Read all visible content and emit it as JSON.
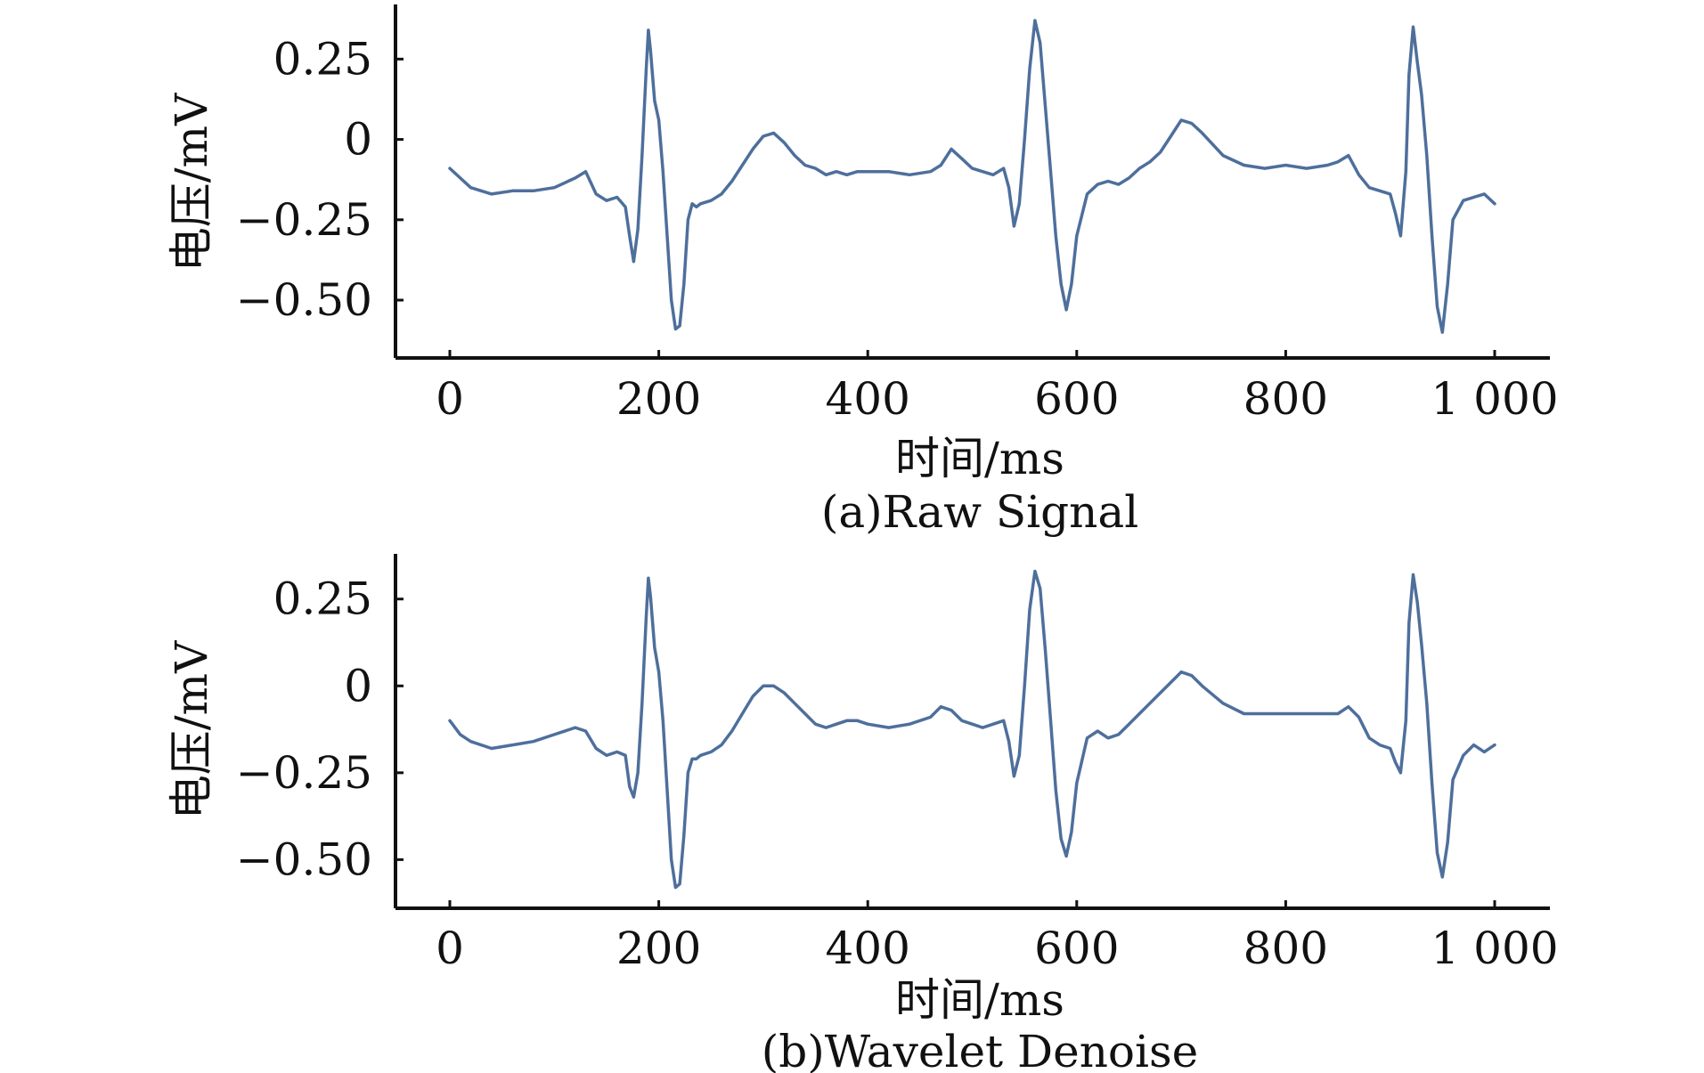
{
  "chart_data": [
    {
      "type": "line",
      "caption": "(a)Raw Signal",
      "xlabel": "时间/ms",
      "ylabel": "电压/mV",
      "xlim": [
        -25,
        1025
      ],
      "ylim": [
        -0.68,
        0.42
      ],
      "xticks": [
        0,
        200,
        400,
        600,
        800,
        1000
      ],
      "xtick_labels": [
        "0",
        "200",
        "400",
        "600",
        "800",
        "1 000"
      ],
      "yticks": [
        0.25,
        0,
        -0.25,
        -0.5
      ],
      "ytick_labels": [
        "0.25",
        "0",
        "−0.25",
        "−0.50"
      ],
      "grid": false,
      "color": "#4e6f9c",
      "series": [
        {
          "x": [
            0,
            10,
            20,
            40,
            60,
            80,
            100,
            120,
            130,
            140,
            150,
            160,
            168,
            172,
            176,
            180,
            184,
            188,
            190,
            192,
            196,
            200,
            204,
            208,
            212,
            216,
            220,
            224,
            228,
            232,
            236,
            240,
            250,
            260,
            270,
            280,
            290,
            300,
            310,
            320,
            330,
            340,
            350,
            360,
            370,
            380,
            390,
            400,
            420,
            440,
            460,
            470,
            480,
            490,
            500,
            510,
            520,
            530,
            535,
            540,
            545,
            550,
            555,
            560,
            565,
            570,
            575,
            580,
            585,
            590,
            595,
            600,
            610,
            620,
            630,
            640,
            650,
            660,
            670,
            680,
            690,
            700,
            710,
            720,
            740,
            760,
            780,
            800,
            820,
            840,
            850,
            860,
            870,
            880,
            890,
            900,
            905,
            910,
            915,
            918,
            922,
            926,
            930,
            935,
            940,
            945,
            950,
            955,
            960,
            970,
            980,
            990,
            1000
          ],
          "y": [
            -0.09,
            -0.12,
            -0.15,
            -0.17,
            -0.16,
            -0.16,
            -0.15,
            -0.12,
            -0.1,
            -0.17,
            -0.19,
            -0.18,
            -0.21,
            -0.3,
            -0.38,
            -0.28,
            -0.05,
            0.22,
            0.34,
            0.28,
            0.12,
            0.06,
            -0.1,
            -0.3,
            -0.5,
            -0.59,
            -0.58,
            -0.45,
            -0.25,
            -0.2,
            -0.21,
            -0.2,
            -0.19,
            -0.17,
            -0.13,
            -0.08,
            -0.03,
            0.01,
            0.02,
            -0.01,
            -0.05,
            -0.08,
            -0.09,
            -0.11,
            -0.1,
            -0.11,
            -0.1,
            -0.1,
            -0.1,
            -0.11,
            -0.1,
            -0.08,
            -0.03,
            -0.06,
            -0.09,
            -0.1,
            -0.11,
            -0.09,
            -0.15,
            -0.27,
            -0.2,
            0.0,
            0.22,
            0.37,
            0.3,
            0.1,
            -0.1,
            -0.3,
            -0.45,
            -0.53,
            -0.45,
            -0.3,
            -0.17,
            -0.14,
            -0.13,
            -0.14,
            -0.12,
            -0.09,
            -0.07,
            -0.04,
            0.01,
            0.06,
            0.05,
            0.02,
            -0.05,
            -0.08,
            -0.09,
            -0.08,
            -0.09,
            -0.08,
            -0.07,
            -0.05,
            -0.11,
            -0.15,
            -0.16,
            -0.17,
            -0.23,
            -0.3,
            -0.1,
            0.2,
            0.35,
            0.24,
            0.14,
            -0.05,
            -0.3,
            -0.52,
            -0.6,
            -0.45,
            -0.25,
            -0.19,
            -0.18,
            -0.17,
            -0.2
          ]
        }
      ]
    },
    {
      "type": "line",
      "caption": "(b)Wavelet Denoise",
      "xlabel": "时间/ms",
      "ylabel": "电压/mV",
      "xlim": [
        -25,
        1025
      ],
      "ylim": [
        -0.64,
        0.38
      ],
      "xticks": [
        0,
        200,
        400,
        600,
        800,
        1000
      ],
      "xtick_labels": [
        "0",
        "200",
        "400",
        "600",
        "800",
        "1 000"
      ],
      "yticks": [
        0.25,
        0,
        -0.25,
        -0.5
      ],
      "ytick_labels": [
        "0.25",
        "0",
        "−0.25",
        "−0.50"
      ],
      "grid": false,
      "color": "#4e6f9c",
      "series": [
        {
          "x": [
            0,
            10,
            20,
            40,
            60,
            80,
            100,
            120,
            130,
            140,
            150,
            160,
            168,
            172,
            176,
            180,
            184,
            188,
            190,
            192,
            196,
            200,
            204,
            208,
            212,
            216,
            220,
            224,
            228,
            232,
            236,
            240,
            250,
            260,
            270,
            280,
            290,
            300,
            310,
            320,
            330,
            340,
            350,
            360,
            370,
            380,
            390,
            400,
            420,
            440,
            460,
            470,
            480,
            490,
            500,
            510,
            520,
            530,
            535,
            540,
            545,
            550,
            555,
            560,
            565,
            570,
            575,
            580,
            585,
            590,
            595,
            600,
            610,
            620,
            630,
            640,
            650,
            660,
            670,
            680,
            690,
            700,
            710,
            720,
            740,
            760,
            780,
            800,
            820,
            840,
            850,
            860,
            870,
            880,
            890,
            900,
            905,
            910,
            915,
            918,
            922,
            926,
            930,
            935,
            940,
            945,
            950,
            955,
            960,
            970,
            980,
            990,
            1000
          ],
          "y": [
            -0.1,
            -0.14,
            -0.16,
            -0.18,
            -0.17,
            -0.16,
            -0.14,
            -0.12,
            -0.13,
            -0.18,
            -0.2,
            -0.19,
            -0.2,
            -0.29,
            -0.32,
            -0.25,
            -0.05,
            0.2,
            0.31,
            0.26,
            0.11,
            0.04,
            -0.1,
            -0.3,
            -0.5,
            -0.58,
            -0.57,
            -0.43,
            -0.25,
            -0.21,
            -0.21,
            -0.2,
            -0.19,
            -0.17,
            -0.13,
            -0.08,
            -0.03,
            0.0,
            0.0,
            -0.02,
            -0.05,
            -0.08,
            -0.11,
            -0.12,
            -0.11,
            -0.1,
            -0.1,
            -0.11,
            -0.12,
            -0.11,
            -0.09,
            -0.06,
            -0.07,
            -0.1,
            -0.11,
            -0.12,
            -0.11,
            -0.1,
            -0.16,
            -0.26,
            -0.2,
            0.0,
            0.22,
            0.33,
            0.28,
            0.1,
            -0.1,
            -0.3,
            -0.44,
            -0.49,
            -0.42,
            -0.28,
            -0.15,
            -0.13,
            -0.15,
            -0.14,
            -0.11,
            -0.08,
            -0.05,
            -0.02,
            0.01,
            0.04,
            0.03,
            0.0,
            -0.05,
            -0.08,
            -0.08,
            -0.08,
            -0.08,
            -0.08,
            -0.08,
            -0.06,
            -0.09,
            -0.15,
            -0.17,
            -0.18,
            -0.22,
            -0.25,
            -0.1,
            0.18,
            0.32,
            0.24,
            0.12,
            -0.05,
            -0.28,
            -0.48,
            -0.55,
            -0.45,
            -0.27,
            -0.2,
            -0.17,
            -0.19,
            -0.17
          ]
        }
      ]
    }
  ]
}
